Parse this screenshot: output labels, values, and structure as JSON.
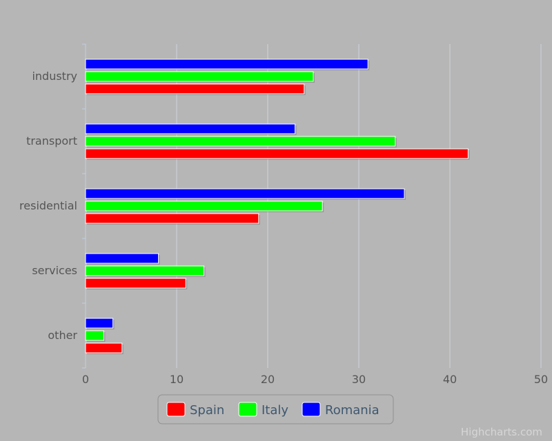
{
  "chart_data": {
    "type": "bar",
    "orientation": "horizontal",
    "title": "",
    "xlabel": "",
    "ylabel": "",
    "categories": [
      "industry",
      "transport",
      "residential",
      "services",
      "other"
    ],
    "series": [
      {
        "name": "Spain",
        "color": "#ff0000",
        "values": [
          24,
          42,
          19,
          11,
          4
        ]
      },
      {
        "name": "Italy",
        "color": "#00ff00",
        "values": [
          25,
          34,
          26,
          13,
          2
        ]
      },
      {
        "name": "Romania",
        "color": "#0000ff",
        "values": [
          31,
          23,
          35,
          8,
          3
        ]
      }
    ],
    "value_axis": {
      "min": 0,
      "max": 50,
      "ticks": [
        0,
        10,
        20,
        30,
        40,
        50
      ]
    },
    "grid": true,
    "legend_position": "bottom-center"
  },
  "colors": {
    "background": "#b6b6b6",
    "gridline": "#cfd4dc",
    "axis_line": "#c0d0e0",
    "bar_border": "#ffffff",
    "legend_background": "#b6b6b6",
    "legend_border": "#909090"
  },
  "credits": "Highcharts.com"
}
